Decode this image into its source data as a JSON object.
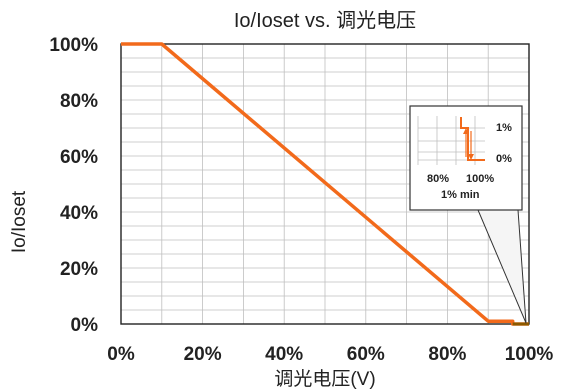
{
  "chart_data": {
    "type": "line",
    "title": "Io/Ioset vs. 调光电压",
    "xlabel": "调光电压(V)",
    "ylabel": "Io/Ioset",
    "xlim": [
      0,
      100
    ],
    "ylim": [
      0,
      100
    ],
    "x_ticks": [
      "0%",
      "20%",
      "40%",
      "60%",
      "80%",
      "100%"
    ],
    "y_ticks": [
      "0%",
      "20%",
      "40%",
      "60%",
      "80%",
      "100%"
    ],
    "grid": true,
    "series": [
      {
        "x": [
          0,
          10,
          90,
          96,
          96,
          100
        ],
        "y": [
          100,
          100,
          1,
          1,
          0,
          0
        ],
        "color": "#f26a1b"
      }
    ],
    "inset": {
      "labels": [
        "1%",
        "0%",
        "80%",
        "100%",
        "1% min"
      ]
    }
  },
  "colors": {
    "line": "#f26a1b",
    "dark_line": "#8b5a00",
    "grid": "#bfbfbf",
    "text": "#000000"
  }
}
